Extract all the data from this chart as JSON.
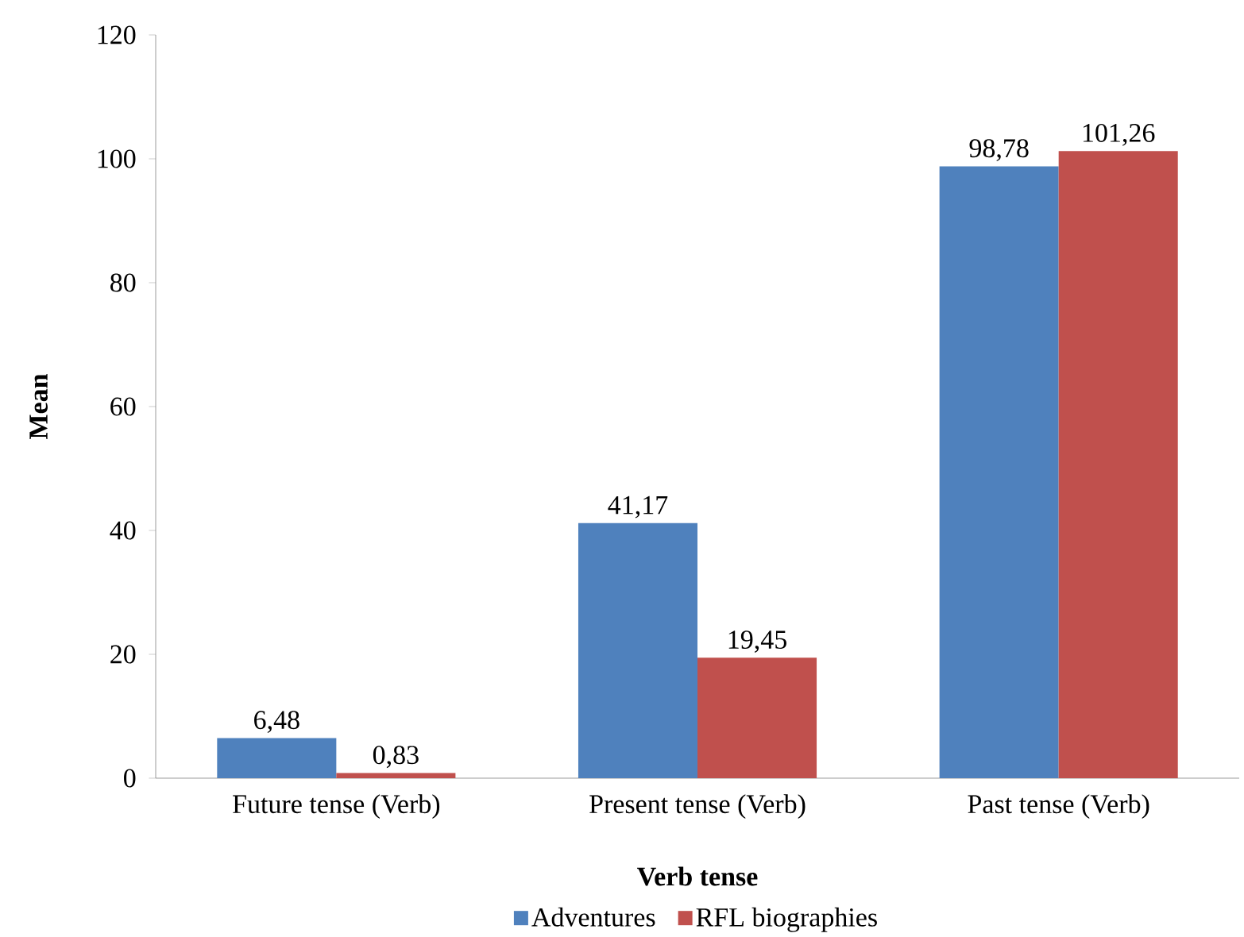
{
  "chart_data": {
    "type": "bar",
    "xlabel": "Verb tense",
    "ylabel": "Mean",
    "categories": [
      "Future tense (Verb)",
      "Present tense (Verb)",
      "Past tense (Verb)"
    ],
    "series": [
      {
        "name": "Adventures",
        "color": "#4f81bd",
        "values": [
          6.48,
          41.17,
          98.78
        ],
        "value_labels": [
          "6,48",
          "41,17",
          "98,78"
        ]
      },
      {
        "name": "RFL biographies",
        "color": "#c0504d",
        "values": [
          0.83,
          19.45,
          101.26
        ],
        "value_labels": [
          "0,83",
          "19,45",
          "101,26"
        ]
      }
    ],
    "ylim": [
      0,
      120
    ],
    "yticks": [
      0,
      20,
      40,
      60,
      80,
      100,
      120
    ],
    "legend": "bottom"
  }
}
